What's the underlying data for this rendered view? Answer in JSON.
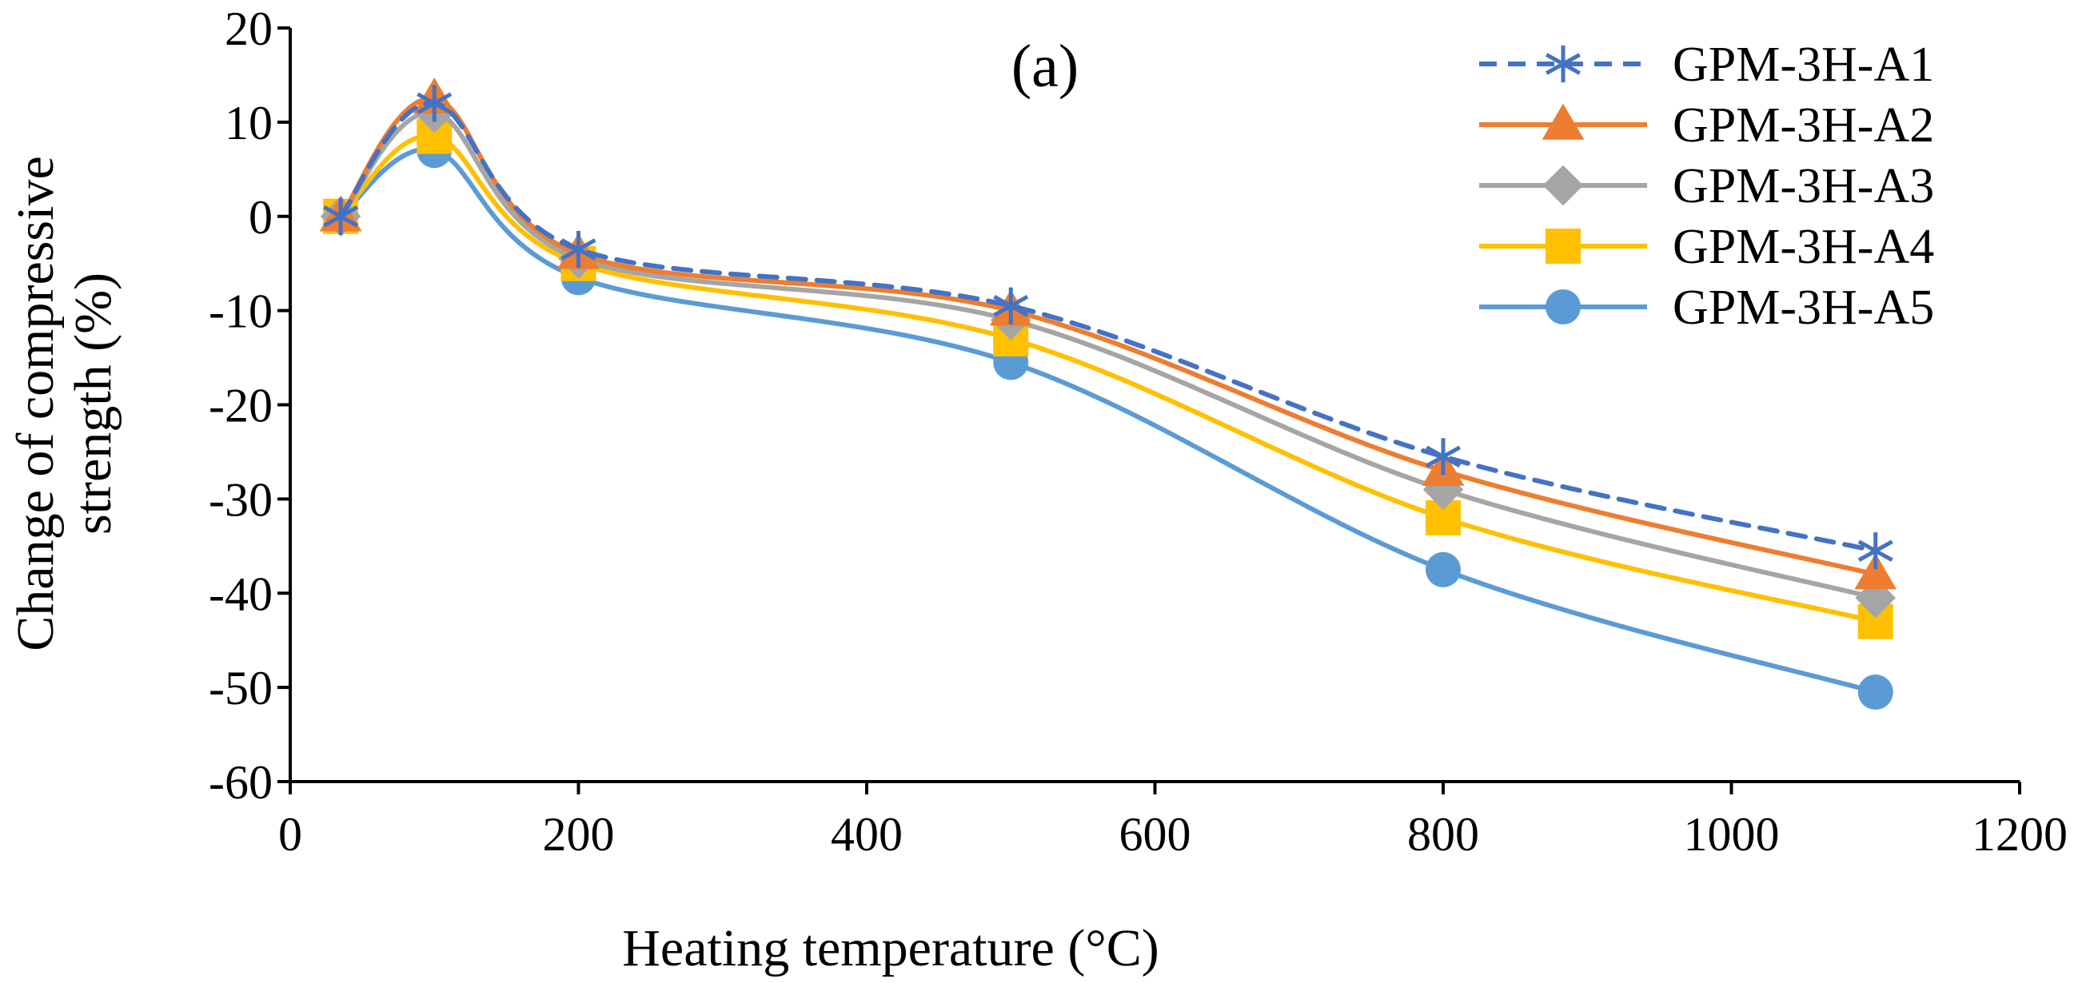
{
  "chart_data": {
    "type": "line",
    "title": "",
    "panel_label": "(a)",
    "xlabel": "Heating temperature (°C)",
    "ylabel_lines": [
      "Change of compressive",
      "strength (%)"
    ],
    "xlim": [
      0,
      1200
    ],
    "ylim": [
      -60,
      20
    ],
    "x_ticks": [
      0,
      200,
      400,
      600,
      800,
      1000,
      1200
    ],
    "y_ticks": [
      20,
      10,
      0,
      -10,
      -20,
      -30,
      -40,
      -50,
      -60
    ],
    "x_tick_labels": [
      "0",
      "200",
      "400",
      "600",
      "800",
      "1000",
      "1200"
    ],
    "y_tick_labels": [
      "20",
      "10",
      "0",
      "-10",
      "-20",
      "-30",
      "-40",
      "-50",
      "-60"
    ],
    "grid": false,
    "legend_position": "top-right",
    "x": [
      35,
      100,
      200,
      500,
      800,
      1100
    ],
    "series": [
      {
        "name": "GPM-3H-A1",
        "color": "#4472C4",
        "marker": "asterisk",
        "dashed": true,
        "values": [
          0,
          12,
          -3.5,
          -9.5,
          -25.5,
          -35.5
        ]
      },
      {
        "name": "GPM-3H-A2",
        "color": "#ED7D31",
        "marker": "triangle",
        "dashed": false,
        "values": [
          0,
          12.5,
          -4,
          -10,
          -27,
          -38
        ]
      },
      {
        "name": "GPM-3H-A3",
        "color": "#A5A5A5",
        "marker": "diamond",
        "dashed": false,
        "values": [
          0,
          11,
          -4.5,
          -11,
          -29,
          -40.5
        ]
      },
      {
        "name": "GPM-3H-A4",
        "color": "#FFC000",
        "marker": "square",
        "dashed": false,
        "values": [
          0,
          8.5,
          -5,
          -13,
          -32,
          -43
        ]
      },
      {
        "name": "GPM-3H-A5",
        "color": "#5B9BD5",
        "marker": "circle",
        "dashed": false,
        "values": [
          0,
          7,
          -6.5,
          -15.5,
          -37.5,
          -50.5
        ]
      }
    ]
  }
}
